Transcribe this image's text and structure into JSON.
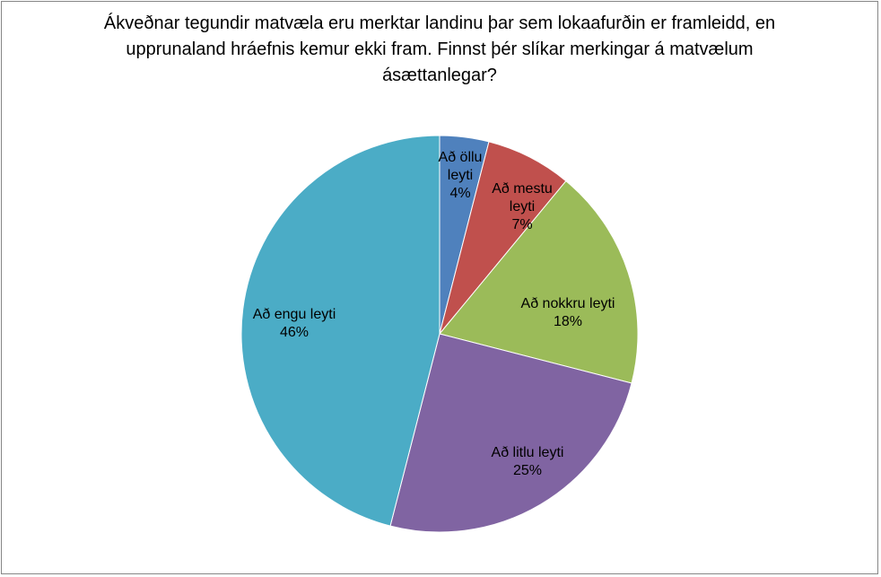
{
  "chart_data": {
    "type": "pie",
    "title": "Ákveðnar tegundir matvæla eru merktar landinu þar sem lokaafurðin er framleidd, en upprunaland hráefnis kemur ekki fram. Finnst þér slíkar merkingar á matvælum ásættanlegar?",
    "slices": [
      {
        "label": "Að öllu leyti",
        "value": 4,
        "percent_label": "4%",
        "color": "#4F81BD"
      },
      {
        "label": "Að mestu leyti",
        "value": 7,
        "percent_label": "7%",
        "color": "#C0504D"
      },
      {
        "label": "Að nokkru leyti",
        "value": 18,
        "percent_label": "18%",
        "color": "#9BBB59"
      },
      {
        "label": "Að litlu leyti",
        "value": 25,
        "percent_label": "25%",
        "color": "#8064A2"
      },
      {
        "label": "Að engu leyti",
        "value": 46,
        "percent_label": "46%",
        "color": "#4BACC6"
      }
    ],
    "legend": "none",
    "data_labels": "inside"
  }
}
